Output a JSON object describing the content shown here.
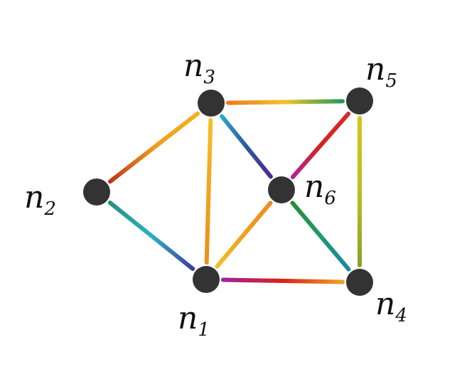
{
  "graph": {
    "node_color": "#333333",
    "nodes": [
      {
        "id": "n1",
        "label": "n",
        "sub": "1"
      },
      {
        "id": "n2",
        "label": "n",
        "sub": "2"
      },
      {
        "id": "n3",
        "label": "n",
        "sub": "3"
      },
      {
        "id": "n4",
        "label": "n",
        "sub": "4"
      },
      {
        "id": "n5",
        "label": "n",
        "sub": "5"
      },
      {
        "id": "n6",
        "label": "n",
        "sub": "6"
      }
    ],
    "edges": [
      {
        "from": "n2",
        "to": "n3",
        "colors": [
          "#c0331c",
          "#f29a1a",
          "#f3b21c"
        ]
      },
      {
        "from": "n2",
        "to": "n1",
        "colors": [
          "#2a8f7c",
          "#2bb1c6",
          "#3b3f9c"
        ]
      },
      {
        "from": "n3",
        "to": "n1",
        "colors": [
          "#f3c12a",
          "#f2a21e",
          "#e8901a"
        ]
      },
      {
        "from": "n3",
        "to": "n5",
        "colors": [
          "#ef7b1c",
          "#f1c32a",
          "#1e9a5a"
        ]
      },
      {
        "from": "n3",
        "to": "n6",
        "colors": [
          "#2aa8c8",
          "#2a5a9c",
          "#4a2a8c"
        ]
      },
      {
        "from": "n6",
        "to": "n5",
        "colors": [
          "#b0229a",
          "#d8221c",
          "#d82a2a"
        ]
      },
      {
        "from": "n5",
        "to": "n4",
        "colors": [
          "#d8c21c",
          "#b8c01e",
          "#8aa02a"
        ]
      },
      {
        "from": "n6",
        "to": "n4",
        "colors": [
          "#2a8c3a",
          "#1e9a6a",
          "#1a8aa0"
        ]
      },
      {
        "from": "n6",
        "to": "n1",
        "colors": [
          "#f08a1c",
          "#f0a01e",
          "#f2c02a"
        ]
      },
      {
        "from": "n1",
        "to": "n4",
        "colors": [
          "#a0229a",
          "#d8221c",
          "#f2a01e"
        ]
      }
    ]
  }
}
